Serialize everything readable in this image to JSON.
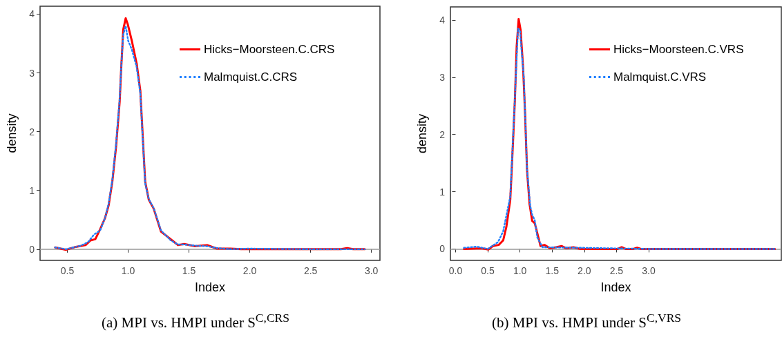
{
  "chart_data": [
    {
      "type": "line",
      "title": "(a) MPI vs. HMPI under S$^{C,CRS}$",
      "xlabel": "Index",
      "ylabel": "density",
      "legend": "top right",
      "xlim": [
        0.276,
        3.07
      ],
      "ylim": [
        -0.19,
        4.135
      ],
      "xticks": [
        {
          "value": 0.5,
          "label": "0.5"
        },
        {
          "value": 1,
          "label": "1.0"
        },
        {
          "value": 1.5,
          "label": "1.5"
        },
        {
          "value": 2,
          "label": "2.0"
        },
        {
          "value": 2.5,
          "label": "2.5"
        },
        {
          "value": 3,
          "label": "3.0"
        }
      ],
      "yticks": [
        0,
        1,
        2,
        3,
        4
      ],
      "ref_lines": [
        {
          "axis": "y",
          "value": 0,
          "color": "#999999"
        }
      ],
      "series": [
        {
          "name": "Hicks−Moorsteen.C.CRS",
          "color": "#ff0000",
          "line_style": "solid",
          "x": [
            0.4,
            0.49,
            0.57,
            0.65,
            0.69,
            0.73,
            0.77,
            0.81,
            0.84,
            0.87,
            0.9,
            0.93,
            0.945,
            0.96,
            0.98,
            0.998,
            1.03,
            1.07,
            1.1,
            1.12,
            1.14,
            1.17,
            1.21,
            1.27,
            1.35,
            1.41,
            1.46,
            1.55,
            1.65,
            1.73,
            1.84,
            1.93,
            2.2,
            2.6,
            2.75,
            2.8,
            2.85,
            2.945
          ],
          "values": [
            0.03,
            -0.01,
            0.04,
            0.07,
            0.15,
            0.17,
            0.34,
            0.53,
            0.75,
            1.15,
            1.73,
            2.5,
            3.16,
            3.74,
            3.93,
            3.82,
            3.55,
            3.16,
            2.7,
            1.92,
            1.15,
            0.84,
            0.69,
            0.3,
            0.17,
            0.07,
            0.09,
            0.05,
            0.07,
            0.01,
            0.01,
            0.0,
            0.0,
            0.0,
            0.0,
            0.02,
            0.0,
            0.0
          ]
        },
        {
          "name": "Malmquist.C.CRS",
          "color": "#1f7fff",
          "line_style": "dotted",
          "x": [
            0.4,
            0.49,
            0.55,
            0.61,
            0.67,
            0.72,
            0.77,
            0.81,
            0.84,
            0.87,
            0.9,
            0.93,
            0.945,
            0.96,
            0.98,
            1.0,
            1.03,
            1.07,
            1.1,
            1.12,
            1.14,
            1.17,
            1.21,
            1.27,
            1.35,
            1.41,
            1.46,
            1.55,
            1.65,
            1.73,
            1.84,
            1.99,
            2.5,
            2.945
          ],
          "values": [
            0.03,
            0.0,
            0.03,
            0.06,
            0.12,
            0.25,
            0.32,
            0.53,
            0.78,
            1.18,
            1.78,
            2.55,
            3.18,
            3.65,
            3.8,
            3.55,
            3.4,
            3.1,
            2.65,
            1.88,
            1.12,
            0.85,
            0.7,
            0.32,
            0.15,
            0.08,
            0.08,
            0.06,
            0.05,
            0.02,
            0.0,
            0.01,
            0.0,
            0.0
          ]
        }
      ]
    },
    {
      "type": "line",
      "title": "(b) MPI vs. HMPI under S$^{C,VRS}$",
      "xlabel": "Index",
      "ylabel": "density",
      "legend": "top right",
      "xlim": [
        -0.08,
        5.06
      ],
      "ylim": [
        -0.2,
        4.23
      ],
      "xticks": [
        {
          "value": 0,
          "label": "0.0"
        },
        {
          "value": 0.5,
          "label": "0.5"
        },
        {
          "value": 1,
          "label": "1.0"
        },
        {
          "value": 1.5,
          "label": "1.5"
        },
        {
          "value": 2,
          "label": "2.0"
        },
        {
          "value": 2.5,
          "label": "2.5"
        },
        {
          "value": 3,
          "label": "3.0"
        }
      ],
      "yticks": [
        0,
        1,
        2,
        3,
        4
      ],
      "ref_lines": [
        {
          "axis": "y",
          "value": 0,
          "color": "#999999"
        }
      ],
      "series": [
        {
          "name": "Hicks−Moorsteen.C.VRS",
          "color": "#ff0000",
          "line_style": "solid",
          "x": [
            0.13,
            0.4,
            0.51,
            0.58,
            0.67,
            0.74,
            0.79,
            0.85,
            0.88,
            0.92,
            0.95,
            0.98,
            1.01,
            1.05,
            1.08,
            1.11,
            1.15,
            1.19,
            1.23,
            1.28,
            1.32,
            1.38,
            1.47,
            1.65,
            1.72,
            1.83,
            1.94,
            2.4,
            2.52,
            2.58,
            2.64,
            2.76,
            2.82,
            2.88,
            3.5,
            4.96
          ],
          "values": [
            0.0,
            0.01,
            -0.01,
            0.05,
            0.07,
            0.15,
            0.39,
            0.86,
            1.57,
            2.56,
            3.55,
            4.02,
            3.83,
            3.15,
            2.36,
            1.38,
            0.78,
            0.49,
            0.45,
            0.23,
            0.05,
            0.07,
            0.01,
            0.05,
            0.01,
            0.03,
            0.0,
            0.0,
            0.0,
            0.03,
            0.0,
            0.0,
            0.02,
            0.0,
            0.0,
            0.0
          ]
        },
        {
          "name": "Malmquist.C.VRS",
          "color": "#1f7fff",
          "line_style": "dotted",
          "x": [
            0.13,
            0.33,
            0.5,
            0.66,
            0.74,
            0.85,
            0.92,
            0.97,
            1.0,
            1.06,
            1.11,
            1.16,
            1.19,
            1.23,
            1.27,
            1.35,
            1.95,
            3.0,
            4.96
          ],
          "values": [
            0.02,
            0.04,
            0.0,
            0.12,
            0.31,
            0.92,
            2.6,
            3.85,
            3.82,
            3.0,
            1.4,
            0.75,
            0.6,
            0.5,
            0.2,
            0.03,
            0.02,
            0.0,
            0.0
          ]
        }
      ]
    }
  ]
}
